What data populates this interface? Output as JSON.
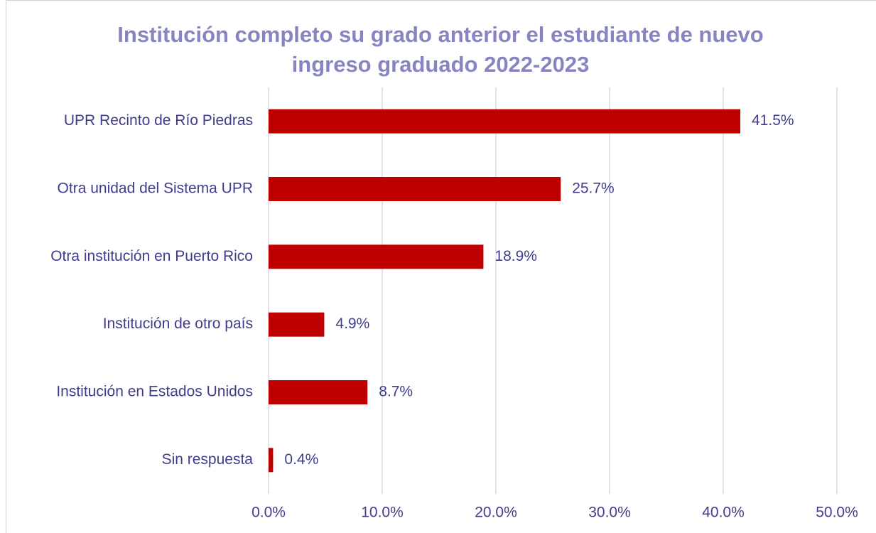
{
  "chart_data": {
    "type": "bar",
    "orientation": "horizontal",
    "title": "Institución completo su grado anterior el estudiante de nuevo ingreso graduado 2022-2023",
    "categories": [
      "UPR Recinto de Río Piedras",
      "Otra unidad del Sistema UPR",
      "Otra institución en Puerto Rico",
      "Institución de otro país",
      "Institución en Estados Unidos",
      "Sin respuesta"
    ],
    "values": [
      41.5,
      25.7,
      18.9,
      4.9,
      8.7,
      0.4
    ],
    "value_labels": [
      "41.5%",
      "25.7%",
      "18.9%",
      "4.9%",
      "8.7%",
      "0.4%"
    ],
    "color": "#c00000",
    "xlim": [
      0,
      50
    ],
    "xticks": [
      {
        "value": 0,
        "label": "0.0%"
      },
      {
        "value": 10,
        "label": "10.0%"
      },
      {
        "value": 20,
        "label": "20.0%"
      },
      {
        "value": 30,
        "label": "30.0%"
      },
      {
        "value": 40,
        "label": "40.0%"
      },
      {
        "value": 50,
        "label": "50.0%"
      }
    ],
    "grid": true
  }
}
